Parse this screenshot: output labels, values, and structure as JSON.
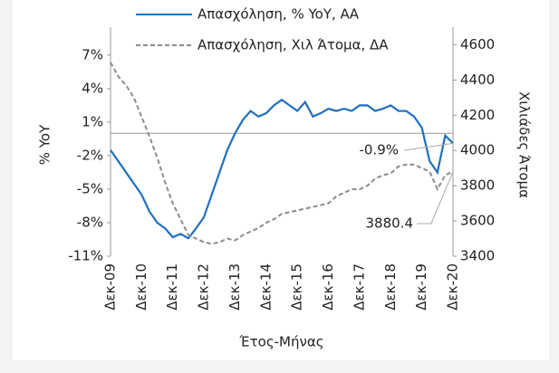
{
  "chart_data": {
    "type": "line",
    "x_label": "Έτος-Μήνας",
    "y_label": "% YoY",
    "y2_label": "Χιλιάδες Άτομα",
    "categories": [
      "Δεκ-09",
      null,
      null,
      null,
      "Δεκ-10",
      null,
      null,
      null,
      "Δεκ-11",
      null,
      null,
      null,
      "Δεκ-12",
      null,
      null,
      null,
      "Δεκ-13",
      null,
      null,
      null,
      "Δεκ-14",
      null,
      null,
      null,
      "Δεκ-15",
      null,
      null,
      null,
      "Δεκ-16",
      null,
      null,
      null,
      "Δεκ-17",
      null,
      null,
      null,
      "Δεκ-18",
      null,
      null,
      null,
      "Δεκ-19",
      null,
      null,
      null,
      "Δεκ-20"
    ],
    "series": [
      {
        "name": "Απασχόληση, % YoY, ΑΑ",
        "color": "#1f6fbf",
        "dash": false,
        "axis": "y",
        "values": [
          -1.5,
          -2.5,
          -3.5,
          -4.5,
          -5.5,
          -7,
          -8,
          -8.5,
          -9.3,
          -9,
          -9.4,
          -8.5,
          -7.5,
          -5.5,
          -3.5,
          -1.5,
          0,
          1.2,
          2,
          1.5,
          1.8,
          2.5,
          3,
          2.5,
          2,
          2.8,
          1.5,
          1.8,
          2.2,
          2,
          2.2,
          2,
          2.5,
          2.5,
          2,
          2.2,
          2.5,
          2,
          2,
          1.5,
          0.5,
          -2.5,
          -3.5,
          -0.2,
          -0.9
        ]
      },
      {
        "name": "Απασχόληση, Χιλ Άτομα, ΔΑ",
        "color": "#8c8c8c",
        "dash": true,
        "axis": "y2",
        "values": [
          4500,
          4420,
          4370,
          4300,
          4190,
          4080,
          3960,
          3820,
          3700,
          3610,
          3520,
          3500,
          3480,
          3470,
          3480,
          3500,
          3490,
          3520,
          3540,
          3560,
          3590,
          3610,
          3640,
          3650,
          3660,
          3670,
          3680,
          3690,
          3700,
          3740,
          3760,
          3780,
          3780,
          3800,
          3840,
          3860,
          3870,
          3910,
          3920,
          3920,
          3900,
          3880,
          3780,
          3860,
          3880.4
        ]
      }
    ],
    "annotations": [
      {
        "text": "-0.9%"
      },
      {
        "text": "3880.4"
      }
    ],
    "ylim": [
      -11,
      9.5
    ],
    "yticks": [
      {
        "value": -11,
        "label": "-11%"
      },
      {
        "value": -8,
        "label": "-8%"
      },
      {
        "value": -5,
        "label": "-5%"
      },
      {
        "value": -2,
        "label": "-2%"
      },
      {
        "value": 1,
        "label": "1%"
      },
      {
        "value": 4,
        "label": "4%"
      },
      {
        "value": 7,
        "label": "7%"
      }
    ],
    "y2lim": [
      3400,
      4700
    ],
    "y2ticks": [
      3400,
      3600,
      3800,
      4000,
      4200,
      4400,
      4600
    ],
    "legend": "top"
  }
}
